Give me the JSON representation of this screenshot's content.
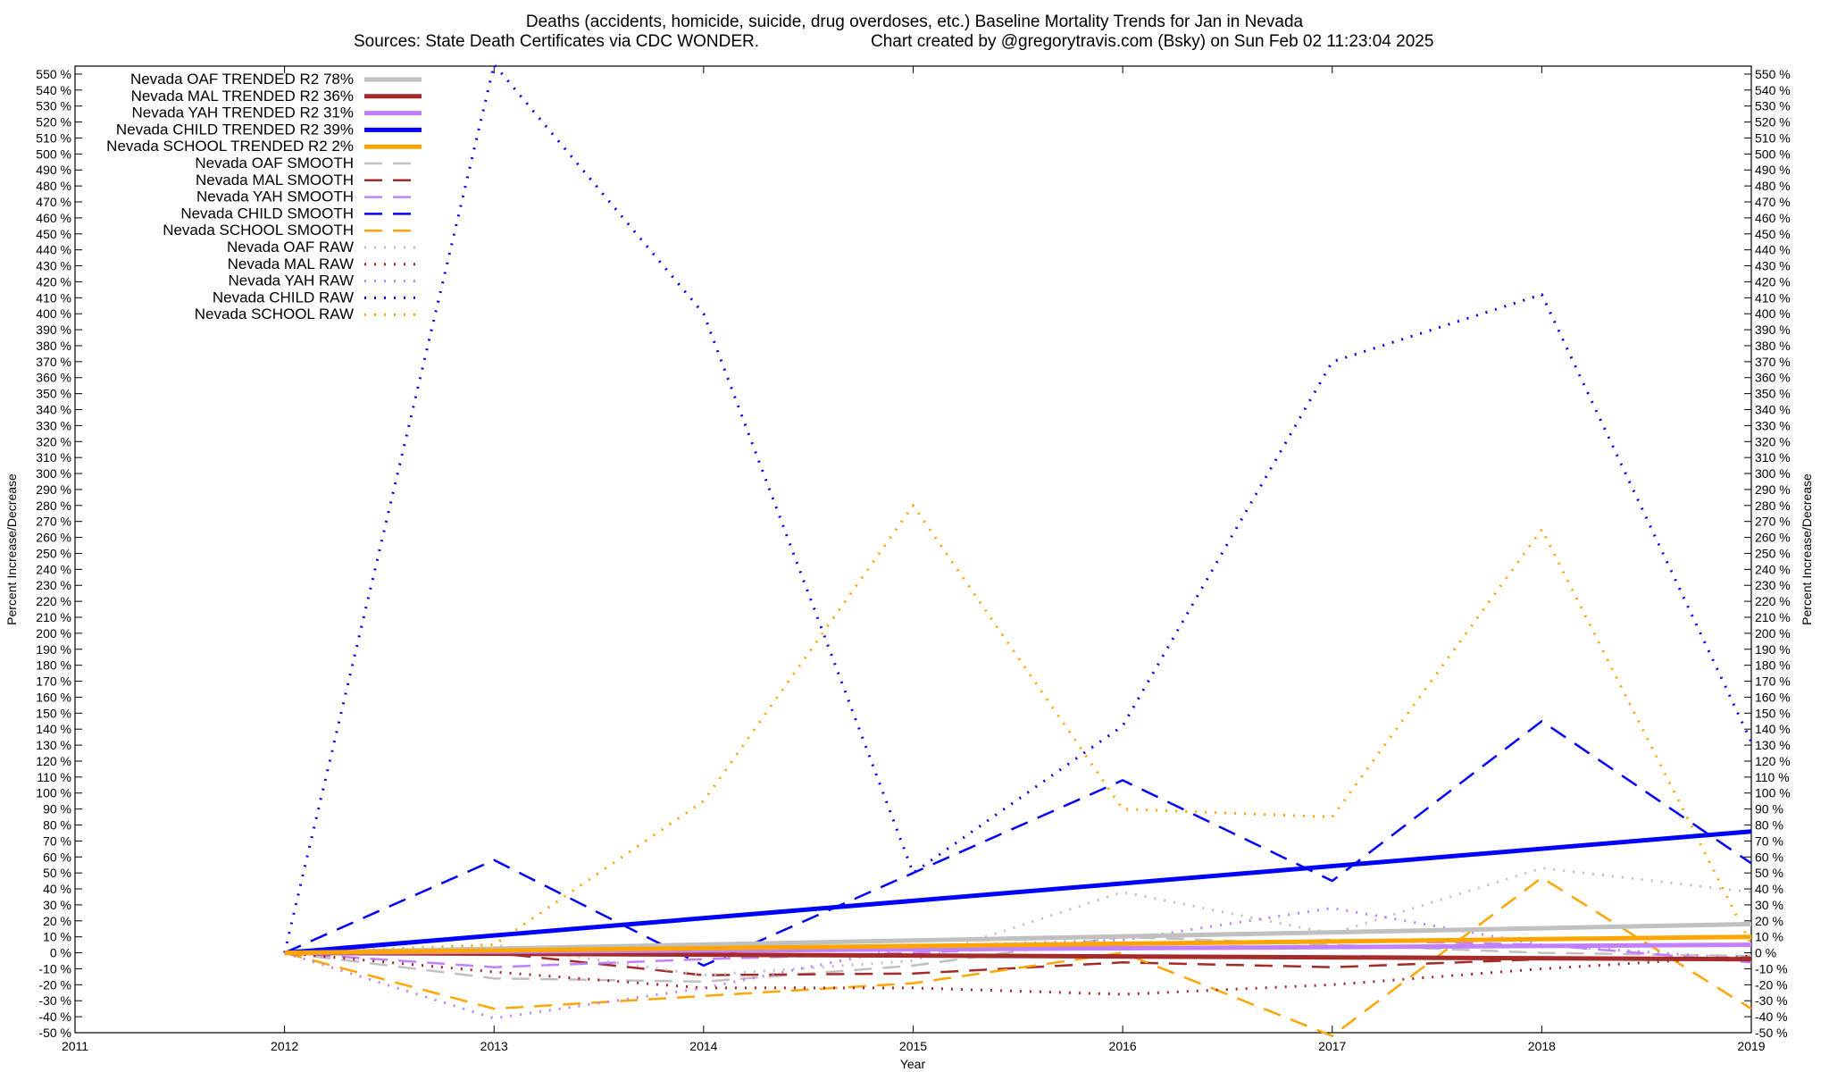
{
  "chart_data": {
    "type": "line",
    "title": "Deaths (accidents, homicide, suicide, drug overdoses, etc.)  Baseline Mortality Trends for Jan in Nevada",
    "subtitle_left": "Sources: State Death Certificates via CDC WONDER.",
    "subtitle_right": "Chart created by @gregorytravis.com (Bsky) on Sun Feb 02 11:23:04 2025",
    "xlabel": "Year",
    "ylabel": "Percent Increase/Decrease",
    "y2label": "Percent Increase/Decrease",
    "xlim": [
      2011,
      2019
    ],
    "ylim": [
      -50,
      555
    ],
    "x_ticks": [
      2011,
      2012,
      2013,
      2014,
      2015,
      2016,
      2017,
      2018,
      2019
    ],
    "y_tick_step": 10,
    "y_tick_suffix": " %",
    "grid": false,
    "legend_position": "top-left",
    "series": [
      {
        "name": "Nevada OAF TRENDED R2  78%",
        "color": "#c0c0c0",
        "style": "solid",
        "width": 5,
        "x": [
          2012,
          2019
        ],
        "y": [
          0,
          18
        ]
      },
      {
        "name": "Nevada MAL TRENDED R2  36%",
        "color": "#a52a2a",
        "style": "solid",
        "width": 5,
        "x": [
          2012,
          2019
        ],
        "y": [
          0,
          -4
        ]
      },
      {
        "name": "Nevada YAH TRENDED R2  31%",
        "color": "#c080ff",
        "style": "solid",
        "width": 5,
        "x": [
          2012,
          2019
        ],
        "y": [
          0,
          5
        ]
      },
      {
        "name": "Nevada CHILD TRENDED R2  39%",
        "color": "#0000ff",
        "style": "solid",
        "width": 5,
        "x": [
          2012,
          2019
        ],
        "y": [
          0,
          76
        ]
      },
      {
        "name": "Nevada SCHOOL TRENDED R2   2%",
        "color": "#ffa500",
        "style": "solid",
        "width": 5,
        "x": [
          2012,
          2019
        ],
        "y": [
          0,
          10
        ]
      },
      {
        "name": "Nevada OAF SMOOTH",
        "color": "#c0c0c0",
        "style": "dashed",
        "width": 2.5,
        "x": [
          2012,
          2013,
          2014,
          2015,
          2016,
          2017,
          2018,
          2019
        ],
        "y": [
          0,
          -16,
          -18,
          -8,
          10,
          5,
          0,
          -2
        ]
      },
      {
        "name": "Nevada MAL SMOOTH",
        "color": "#a52a2a",
        "style": "dashed",
        "width": 2.5,
        "x": [
          2012,
          2013,
          2014,
          2015,
          2016,
          2017,
          2018,
          2019
        ],
        "y": [
          0,
          0,
          -14,
          -13,
          -6,
          -9,
          -4,
          -3
        ]
      },
      {
        "name": "Nevada YAH SMOOTH",
        "color": "#c080ff",
        "style": "dashed",
        "width": 2.5,
        "x": [
          2012,
          2013,
          2014,
          2015,
          2016,
          2017,
          2018,
          2019
        ],
        "y": [
          0,
          -9,
          -4,
          0,
          5,
          8,
          5,
          -6
        ]
      },
      {
        "name": "Nevada CHILD SMOOTH",
        "color": "#0000ff",
        "style": "dashed",
        "width": 2.5,
        "x": [
          2012,
          2013,
          2014,
          2015,
          2016,
          2017,
          2018,
          2019
        ],
        "y": [
          0,
          58,
          -8,
          50,
          108,
          45,
          145,
          56
        ]
      },
      {
        "name": "Nevada SCHOOL SMOOTH",
        "color": "#ffa500",
        "style": "dashed",
        "width": 2.5,
        "x": [
          2012,
          2013,
          2014,
          2015,
          2016,
          2017,
          2018,
          2019
        ],
        "y": [
          0,
          -35,
          -27,
          -19,
          0,
          -52,
          47,
          -35
        ]
      },
      {
        "name": "Nevada OAF RAW",
        "color": "#c0c0c0",
        "style": "dotted",
        "width": 3,
        "x": [
          2012,
          2013,
          2014,
          2015,
          2016,
          2017,
          2018,
          2019
        ],
        "y": [
          0,
          5,
          -14,
          -5,
          38,
          12,
          53,
          38
        ]
      },
      {
        "name": "Nevada MAL RAW",
        "color": "#a52a2a",
        "style": "dotted",
        "width": 3,
        "x": [
          2012,
          2013,
          2014,
          2015,
          2016,
          2017,
          2018,
          2019
        ],
        "y": [
          0,
          -12,
          -22,
          -22,
          -26,
          -20,
          -10,
          -2
        ]
      },
      {
        "name": "Nevada YAH RAW",
        "color": "#c080ff",
        "style": "dotted",
        "width": 3,
        "x": [
          2012,
          2013,
          2014,
          2015,
          2016,
          2017,
          2018,
          2019
        ],
        "y": [
          0,
          -41,
          -22,
          4,
          8,
          28,
          5,
          -4
        ]
      },
      {
        "name": "Nevada CHILD RAW",
        "color": "#0000ff",
        "style": "dotted",
        "width": 3,
        "x": [
          2012,
          2013,
          2014,
          2015,
          2016,
          2017,
          2018,
          2019
        ],
        "y": [
          0,
          556,
          400,
          50,
          142,
          370,
          412,
          132
        ]
      },
      {
        "name": "Nevada SCHOOL RAW",
        "color": "#ffa500",
        "style": "dotted",
        "width": 3,
        "x": [
          2012,
          2013,
          2014,
          2015,
          2016,
          2017,
          2018,
          2019
        ],
        "y": [
          0,
          5,
          95,
          280,
          90,
          85,
          265,
          5
        ]
      }
    ]
  }
}
